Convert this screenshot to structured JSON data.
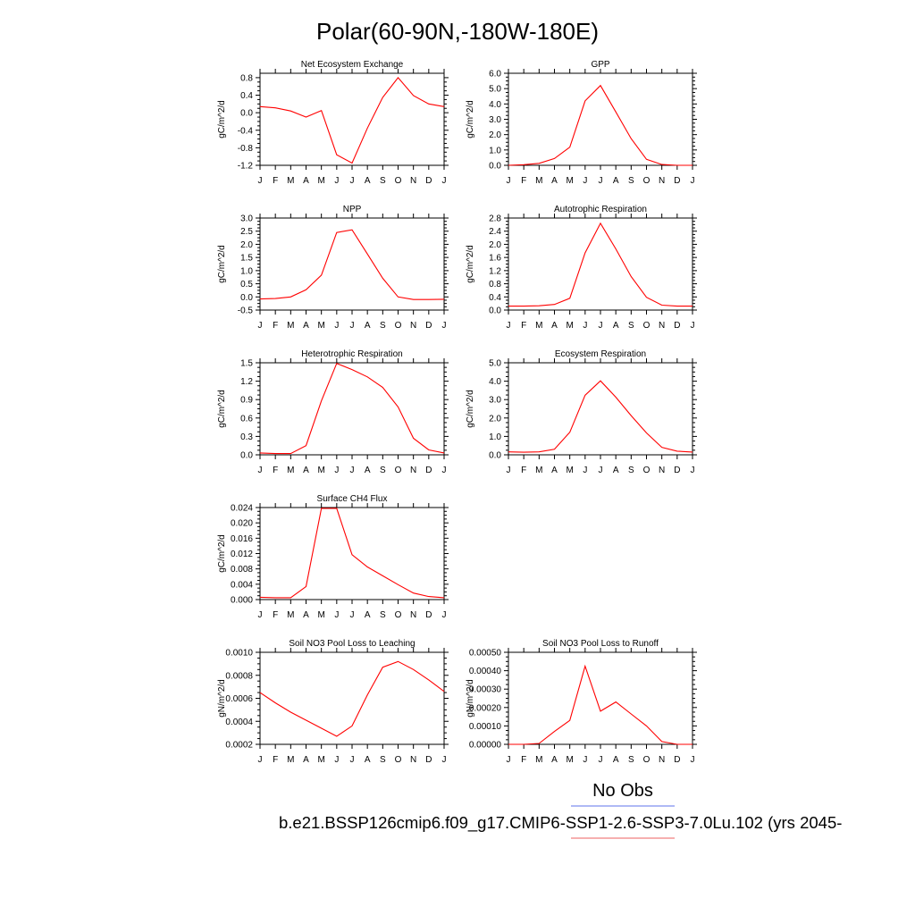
{
  "page_title": "Polar(60-90N,-180W-180E)",
  "months": [
    "J",
    "F",
    "M",
    "A",
    "M",
    "J",
    "J",
    "A",
    "S",
    "O",
    "N",
    "D",
    "J"
  ],
  "legend": {
    "obs_label": "No Obs",
    "obs_color": "#7f8fef",
    "case_label": "b.e21.BSSP126cmip6.f09_g17.CMIP6-SSP1-2.6-SSP3-7.0Lu.102 (yrs 2045-",
    "case_color": "#f08080"
  },
  "line_color": "#ff0000",
  "chart_data": [
    {
      "type": "line",
      "title": "Net Ecosystem Exchange",
      "ylabel": "gC/m^2/d",
      "ylim": [
        -1.2,
        0.9
      ],
      "yticks": [
        -1.2,
        -0.8,
        -0.4,
        0.0,
        0.4,
        0.8
      ],
      "ytick_labels": [
        "-1.2",
        "-0.8",
        "-0.4",
        "0.0",
        "0.4",
        "0.8"
      ],
      "x": [
        "J",
        "F",
        "M",
        "A",
        "M",
        "J",
        "J",
        "A",
        "S",
        "O",
        "N",
        "D",
        "J"
      ],
      "series": [
        {
          "values": [
            0.14,
            0.11,
            0.04,
            -0.1,
            0.05,
            -0.96,
            -1.15,
            -0.35,
            0.35,
            0.8,
            0.39,
            0.2,
            0.14
          ]
        }
      ]
    },
    {
      "type": "line",
      "title": "GPP",
      "ylabel": "gC/m^2/d",
      "ylim": [
        0,
        6.0
      ],
      "yticks": [
        0,
        1,
        2,
        3,
        4,
        5,
        6
      ],
      "ytick_labels": [
        "0.0",
        "1.0",
        "2.0",
        "3.0",
        "4.0",
        "5.0",
        "6.0"
      ],
      "x": [
        "J",
        "F",
        "M",
        "A",
        "M",
        "J",
        "J",
        "A",
        "S",
        "O",
        "N",
        "D",
        "J"
      ],
      "series": [
        {
          "values": [
            0.0,
            0.04,
            0.13,
            0.44,
            1.18,
            4.2,
            5.2,
            3.48,
            1.74,
            0.39,
            0.05,
            0.0,
            0.0
          ]
        }
      ]
    },
    {
      "type": "line",
      "title": "NPP",
      "ylabel": "gC/m^2/d",
      "ylim": [
        -0.5,
        3.0
      ],
      "yticks": [
        -0.5,
        0.0,
        0.5,
        1.0,
        1.5,
        2.0,
        2.5,
        3.0
      ],
      "ytick_labels": [
        "-0.5",
        "0.0",
        "0.5",
        "1.0",
        "1.5",
        "2.0",
        "2.5",
        "3.0"
      ],
      "x": [
        "J",
        "F",
        "M",
        "A",
        "M",
        "J",
        "J",
        "A",
        "S",
        "O",
        "N",
        "D",
        "J"
      ],
      "series": [
        {
          "values": [
            -0.08,
            -0.06,
            0.0,
            0.27,
            0.83,
            2.45,
            2.55,
            1.63,
            0.71,
            0.0,
            -0.1,
            -0.1,
            -0.09
          ]
        }
      ]
    },
    {
      "type": "line",
      "title": "Autotrophic Respiration",
      "ylabel": "gC/m^2/d",
      "ylim": [
        0,
        2.8
      ],
      "yticks": [
        0,
        0.4,
        0.8,
        1.2,
        1.6,
        2.0,
        2.4,
        2.8
      ],
      "ytick_labels": [
        "0.0",
        "0.4",
        "0.8",
        "1.2",
        "1.6",
        "2.0",
        "2.4",
        "2.8"
      ],
      "x": [
        "J",
        "F",
        "M",
        "A",
        "M",
        "J",
        "J",
        "A",
        "S",
        "O",
        "N",
        "D",
        "J"
      ],
      "series": [
        {
          "values": [
            0.12,
            0.12,
            0.13,
            0.17,
            0.36,
            1.74,
            2.64,
            1.86,
            1.02,
            0.39,
            0.15,
            0.12,
            0.12
          ]
        }
      ]
    },
    {
      "type": "line",
      "title": "Heterotrophic Respiration",
      "ylabel": "gC/m^2/d",
      "ylim": [
        0,
        1.5
      ],
      "yticks": [
        0,
        0.3,
        0.6,
        0.9,
        1.2,
        1.5
      ],
      "ytick_labels": [
        "0.0",
        "0.3",
        "0.6",
        "0.9",
        "1.2",
        "1.5"
      ],
      "x": [
        "J",
        "F",
        "M",
        "A",
        "M",
        "J",
        "J",
        "A",
        "S",
        "O",
        "N",
        "D",
        "J"
      ],
      "series": [
        {
          "values": [
            0.03,
            0.02,
            0.02,
            0.15,
            0.88,
            1.49,
            1.39,
            1.27,
            1.1,
            0.78,
            0.27,
            0.08,
            0.03
          ]
        }
      ]
    },
    {
      "type": "line",
      "title": "Ecosystem Respiration",
      "ylabel": "gC/m^2/d",
      "ylim": [
        0,
        5.0
      ],
      "yticks": [
        0,
        1,
        2,
        3,
        4,
        5
      ],
      "ytick_labels": [
        "0.0",
        "1.0",
        "2.0",
        "3.0",
        "4.0",
        "5.0"
      ],
      "x": [
        "J",
        "F",
        "M",
        "A",
        "M",
        "J",
        "J",
        "A",
        "S",
        "O",
        "N",
        "D",
        "J"
      ],
      "series": [
        {
          "values": [
            0.16,
            0.14,
            0.16,
            0.3,
            1.23,
            3.24,
            4.02,
            3.13,
            2.13,
            1.19,
            0.41,
            0.2,
            0.15
          ]
        }
      ]
    },
    {
      "type": "line",
      "title": "Surface CH4 Flux",
      "ylabel": "gC/m^2/d",
      "ylim": [
        0,
        0.024
      ],
      "yticks": [
        0,
        0.004,
        0.008,
        0.012,
        0.016,
        0.02,
        0.024
      ],
      "ytick_labels": [
        "0.000",
        "0.004",
        "0.008",
        "0.012",
        "0.016",
        "0.020",
        "0.024"
      ],
      "x": [
        "J",
        "F",
        "M",
        "A",
        "M",
        "J",
        "J",
        "A",
        "S",
        "O",
        "N",
        "D",
        "J"
      ],
      "series": [
        {
          "values": [
            0.0006,
            0.0005,
            0.0005,
            0.0034,
            0.0238,
            0.0238,
            0.0117,
            0.0085,
            0.0062,
            0.0039,
            0.0017,
            0.0008,
            0.0005
          ]
        }
      ]
    },
    {
      "type": "line",
      "title": "Soil NO3 Pool Loss to Leaching",
      "ylabel": "gN/m^2/d",
      "ylim": [
        0.0002,
        0.001
      ],
      "yticks": [
        0.0002,
        0.0004,
        0.0006,
        0.0008,
        0.001
      ],
      "ytick_labels": [
        "0.0002",
        "0.0004",
        "0.0006",
        "0.0008",
        "0.0010"
      ],
      "x": [
        "J",
        "F",
        "M",
        "A",
        "M",
        "J",
        "J",
        "A",
        "S",
        "O",
        "N",
        "D",
        "J"
      ],
      "series": [
        {
          "values": [
            0.00065,
            0.00056,
            0.00048,
            0.00041,
            0.00034,
            0.00027,
            0.00036,
            0.00063,
            0.00087,
            0.00092,
            0.00085,
            0.00076,
            0.00066
          ]
        }
      ]
    },
    {
      "type": "line",
      "title": "Soil NO3 Pool Loss to Runoff",
      "ylabel": "gN/m^2/d",
      "ylim": [
        0,
        0.0005
      ],
      "yticks": [
        0,
        0.0001,
        0.0002,
        0.0003,
        0.0004,
        0.0005
      ],
      "ytick_labels": [
        "0.00000",
        "0.00010",
        "0.00020",
        "0.00030",
        "0.00040",
        "0.00050"
      ],
      "x": [
        "J",
        "F",
        "M",
        "A",
        "M",
        "J",
        "J",
        "A",
        "S",
        "O",
        "N",
        "D",
        "J"
      ],
      "series": [
        {
          "values": [
            0.0,
            0.0,
            5e-06,
            7e-05,
            0.00013,
            0.000425,
            0.00018,
            0.00023,
            0.000165,
            0.0001,
            1.5e-05,
            0.0,
            0.0
          ]
        }
      ]
    }
  ]
}
